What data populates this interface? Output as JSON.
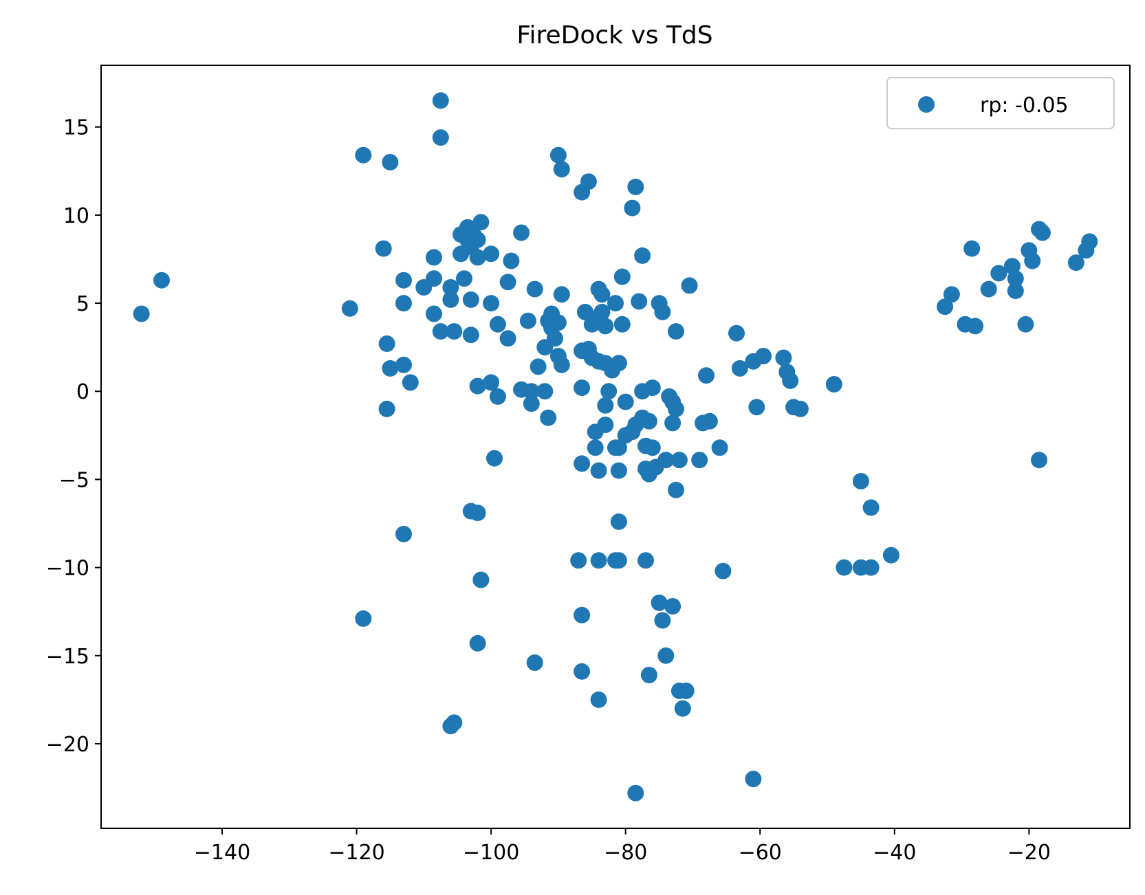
{
  "chart_data": {
    "type": "scatter",
    "title": "FireDock vs TdS",
    "xlabel": "",
    "ylabel": "",
    "xlim": [
      -158,
      -5
    ],
    "ylim": [
      -24.8,
      18.5
    ],
    "xticks": [
      -140,
      -120,
      -100,
      -80,
      -60,
      -40,
      -20
    ],
    "yticks": [
      15,
      10,
      5,
      0,
      -5,
      -10,
      -15,
      -20
    ],
    "grid": false,
    "legend_position": "top-right",
    "series": [
      {
        "name": "rp: -0.05",
        "color": "#1f77b4",
        "points": [
          [
            -152,
            4.4
          ],
          [
            -149,
            6.3
          ],
          [
            -121,
            4.7
          ],
          [
            -119,
            13.4
          ],
          [
            -115,
            13.0
          ],
          [
            -116,
            8.1
          ],
          [
            -115.5,
            2.7
          ],
          [
            -115,
            1.3
          ],
          [
            -115.5,
            -1.0
          ],
          [
            -113,
            1.5
          ],
          [
            -112,
            0.5
          ],
          [
            -113,
            5.0
          ],
          [
            -113,
            6.3
          ],
          [
            -113,
            -8.1
          ],
          [
            -119,
            -12.9
          ],
          [
            -110,
            5.9
          ],
          [
            -108.5,
            7.6
          ],
          [
            -108.5,
            4.4
          ],
          [
            -108.5,
            6.4
          ],
          [
            -107.5,
            16.5
          ],
          [
            -107.5,
            14.4
          ],
          [
            -107.5,
            3.4
          ],
          [
            -106,
            5.2
          ],
          [
            -106,
            5.9
          ],
          [
            -105.5,
            3.4
          ],
          [
            -104.5,
            7.8
          ],
          [
            -104,
            6.4
          ],
          [
            -104.5,
            8.9
          ],
          [
            -103.5,
            9.3
          ],
          [
            -103.5,
            8.6
          ],
          [
            -103,
            8.2
          ],
          [
            -102.5,
            8.8
          ],
          [
            -102,
            7.6
          ],
          [
            -102,
            8.6
          ],
          [
            -101.5,
            9.6
          ],
          [
            -103,
            5.2
          ],
          [
            -103,
            3.2
          ],
          [
            -100,
            7.8
          ],
          [
            -100,
            5.0
          ],
          [
            -99,
            3.8
          ],
          [
            -97,
            7.4
          ],
          [
            -97.5,
            6.2
          ],
          [
            -97.5,
            3.0
          ],
          [
            -102,
            0.3
          ],
          [
            -100,
            0.5
          ],
          [
            -99,
            -0.3
          ],
          [
            -99.5,
            -3.8
          ],
          [
            -103,
            -6.8
          ],
          [
            -102,
            -6.9
          ],
          [
            -101.5,
            -10.7
          ],
          [
            -102,
            -14.3
          ],
          [
            -106,
            -19.0
          ],
          [
            -105.5,
            -18.8
          ],
          [
            -95.5,
            9.0
          ],
          [
            -95.5,
            0.1
          ],
          [
            -94,
            0.0
          ],
          [
            -94,
            -0.7
          ],
          [
            -94.5,
            4.0
          ],
          [
            -93.5,
            5.8
          ],
          [
            -93,
            1.4
          ],
          [
            -92,
            0.0
          ],
          [
            -91.5,
            -1.5
          ],
          [
            -92,
            2.5
          ],
          [
            -91.5,
            4.0
          ],
          [
            -91,
            4.4
          ],
          [
            -91,
            3.6
          ],
          [
            -90.5,
            3.0
          ],
          [
            -90,
            3.9
          ],
          [
            -90,
            2.0
          ],
          [
            -89.5,
            1.5
          ],
          [
            -89.5,
            5.5
          ],
          [
            -90,
            13.4
          ],
          [
            -89.5,
            12.6
          ],
          [
            -93.5,
            -15.4
          ],
          [
            -86.5,
            11.3
          ],
          [
            -85.5,
            11.9
          ],
          [
            -86,
            4.5
          ],
          [
            -85,
            3.8
          ],
          [
            -84.5,
            4.1
          ],
          [
            -84,
            5.8
          ],
          [
            -83.5,
            5.5
          ],
          [
            -83.5,
            4.5
          ],
          [
            -83,
            3.7
          ],
          [
            -86.5,
            2.3
          ],
          [
            -85.5,
            2.4
          ],
          [
            -85,
            1.9
          ],
          [
            -84,
            1.7
          ],
          [
            -83,
            1.6
          ],
          [
            -82,
            1.2
          ],
          [
            -81,
            1.6
          ],
          [
            -86.5,
            0.2
          ],
          [
            -82.5,
            0.0
          ],
          [
            -83,
            -0.8
          ],
          [
            -83,
            -1.9
          ],
          [
            -84.5,
            -2.3
          ],
          [
            -84.5,
            -3.2
          ],
          [
            -81.5,
            -3.2
          ],
          [
            -81,
            -3.2
          ],
          [
            -80,
            -2.5
          ],
          [
            -79,
            -2.3
          ],
          [
            -78.5,
            -1.9
          ],
          [
            -77.5,
            -1.5
          ],
          [
            -76.5,
            -1.7
          ],
          [
            -81.5,
            5.0
          ],
          [
            -80.5,
            3.8
          ],
          [
            -80.5,
            6.5
          ],
          [
            -80,
            -0.6
          ],
          [
            -79,
            10.4
          ],
          [
            -78.5,
            11.6
          ],
          [
            -78,
            5.1
          ],
          [
            -77.5,
            7.7
          ],
          [
            -77.5,
            0.0
          ],
          [
            -76,
            0.2
          ],
          [
            -75,
            5.0
          ],
          [
            -74.5,
            4.5
          ],
          [
            -73.5,
            -0.3
          ],
          [
            -73,
            -0.6
          ],
          [
            -72.5,
            -1.0
          ],
          [
            -73,
            -1.8
          ],
          [
            -72.5,
            3.4
          ],
          [
            -70.5,
            6.0
          ],
          [
            -77,
            -3.1
          ],
          [
            -76,
            -3.2
          ],
          [
            -77,
            -4.4
          ],
          [
            -76.5,
            -4.7
          ],
          [
            -75.5,
            -4.3
          ],
          [
            -74,
            -3.9
          ],
          [
            -72,
            -3.9
          ],
          [
            -69,
            -3.9
          ],
          [
            -72.5,
            -5.6
          ],
          [
            -68.5,
            -1.8
          ],
          [
            -67.5,
            -1.7
          ],
          [
            -68,
            0.9
          ],
          [
            -66,
            -3.2
          ],
          [
            -84,
            -4.5
          ],
          [
            -81,
            -4.5
          ],
          [
            -86.5,
            -4.1
          ],
          [
            -81,
            -7.4
          ],
          [
            -87,
            -9.6
          ],
          [
            -84,
            -9.6
          ],
          [
            -81.5,
            -9.6
          ],
          [
            -81,
            -9.6
          ],
          [
            -77,
            -9.6
          ],
          [
            -86.5,
            -12.7
          ],
          [
            -75,
            -12.0
          ],
          [
            -73,
            -12.2
          ],
          [
            -74.5,
            -13.0
          ],
          [
            -74,
            -15.0
          ],
          [
            -76.5,
            -16.1
          ],
          [
            -86.5,
            -15.9
          ],
          [
            -84,
            -17.5
          ],
          [
            -72,
            -17.0
          ],
          [
            -71,
            -17.0
          ],
          [
            -71.5,
            -18.0
          ],
          [
            -78.5,
            -22.8
          ],
          [
            -65.5,
            -10.2
          ],
          [
            -63.5,
            3.3
          ],
          [
            -63,
            1.3
          ],
          [
            -61,
            1.7
          ],
          [
            -59.5,
            2.0
          ],
          [
            -60.5,
            -0.9
          ],
          [
            -56.5,
            1.9
          ],
          [
            -56,
            1.1
          ],
          [
            -55.5,
            0.6
          ],
          [
            -55,
            -0.9
          ],
          [
            -54,
            -1.0
          ],
          [
            -49,
            0.4
          ],
          [
            -61,
            -22.0
          ],
          [
            -47.5,
            -10.0
          ],
          [
            -45,
            -10.0
          ],
          [
            -43.5,
            -10.0
          ],
          [
            -45,
            -5.1
          ],
          [
            -43.5,
            -6.6
          ],
          [
            -40.5,
            -9.3
          ],
          [
            -32.5,
            4.8
          ],
          [
            -31.5,
            5.5
          ],
          [
            -29.5,
            3.8
          ],
          [
            -28.5,
            8.1
          ],
          [
            -28,
            3.7
          ],
          [
            -26,
            5.8
          ],
          [
            -24.5,
            6.7
          ],
          [
            -22.5,
            7.1
          ],
          [
            -22,
            6.4
          ],
          [
            -22,
            5.7
          ],
          [
            -20,
            8.0
          ],
          [
            -19.5,
            7.4
          ],
          [
            -18.5,
            9.2
          ],
          [
            -18,
            9.0
          ],
          [
            -20.5,
            3.8
          ],
          [
            -18.5,
            -3.9
          ],
          [
            -13,
            7.3
          ],
          [
            -11.5,
            8.0
          ],
          [
            -11,
            8.5
          ]
        ]
      }
    ]
  }
}
